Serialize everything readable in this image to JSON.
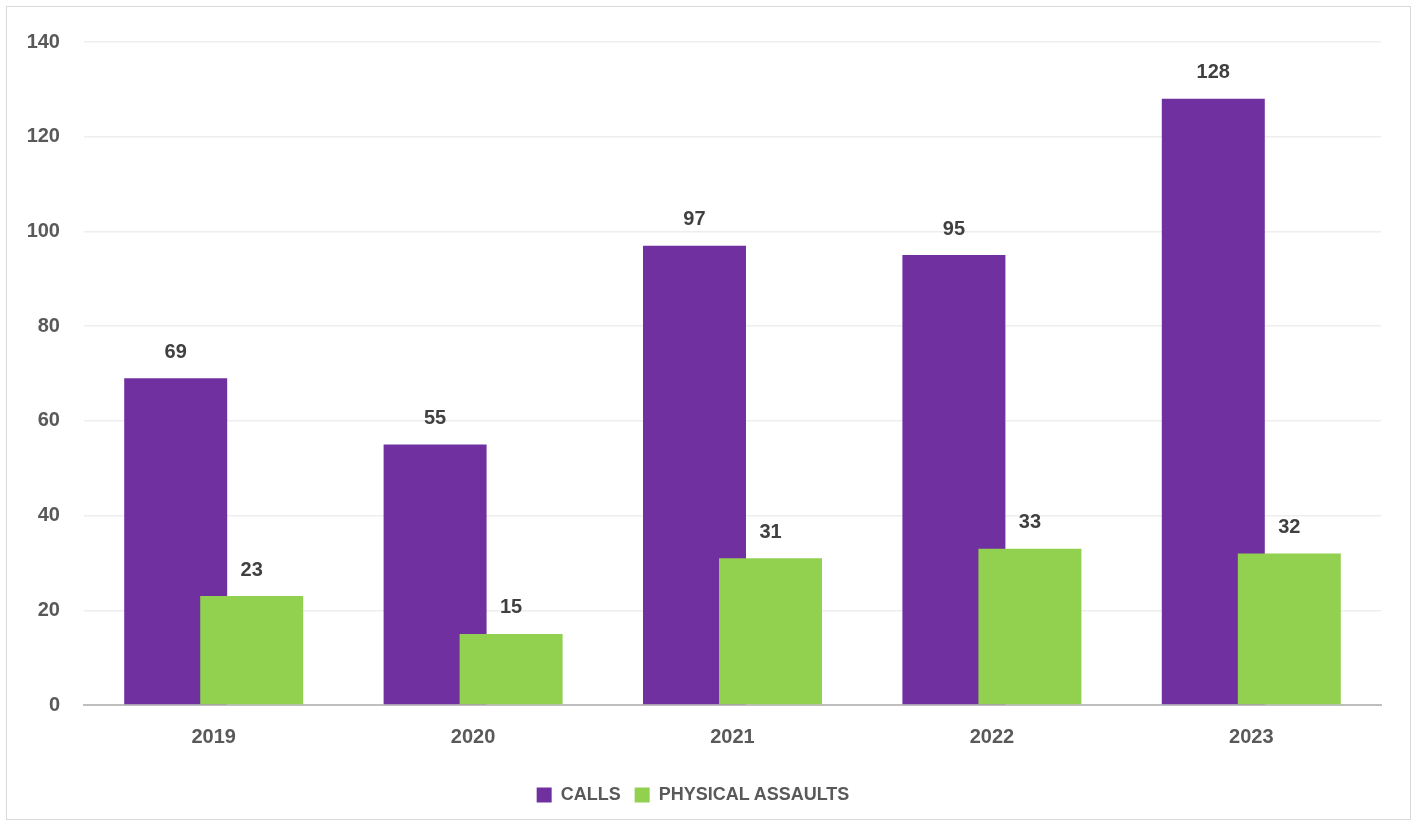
{
  "chart_data": {
    "type": "bar",
    "categories": [
      "2019",
      "2020",
      "2021",
      "2022",
      "2023"
    ],
    "series": [
      {
        "name": "CALLS",
        "color": "#7030a0",
        "values": [
          69,
          55,
          97,
          95,
          128
        ]
      },
      {
        "name": "PHYSICAL ASSAULTS",
        "color": "#92d050",
        "values": [
          23,
          15,
          31,
          33,
          32
        ]
      }
    ],
    "ylim": [
      0,
      140
    ],
    "yticks": [
      0,
      20,
      40,
      60,
      80,
      100,
      120,
      140
    ],
    "grid": "y",
    "legend": "bottom",
    "data_labels": true
  }
}
